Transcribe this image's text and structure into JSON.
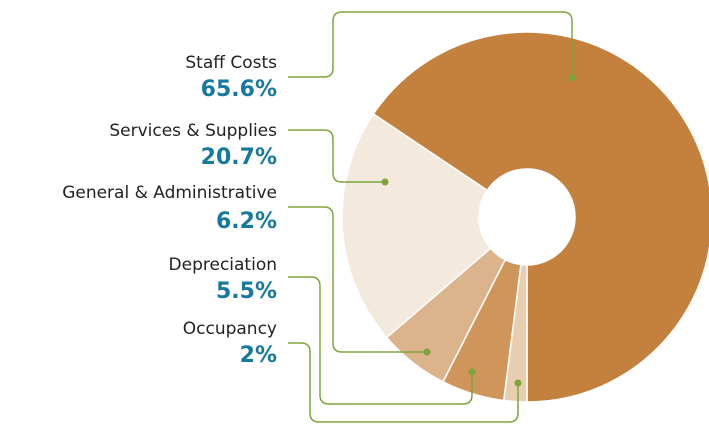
{
  "chart_data": {
    "type": "donut",
    "categories": [
      "Staff Costs",
      "Services & Supplies",
      "General & Administrative",
      "Depreciation",
      "Occupancy"
    ],
    "values": [
      65.6,
      20.7,
      6.2,
      5.5,
      2
    ],
    "value_labels": [
      "65.6%",
      "20.7%",
      "6.2%",
      "5.5%",
      "2%"
    ],
    "colors": [
      "#c4813d",
      "#f3e9dc",
      "#dcb48c",
      "#cf955b",
      "#e8cfb2"
    ]
  }
}
